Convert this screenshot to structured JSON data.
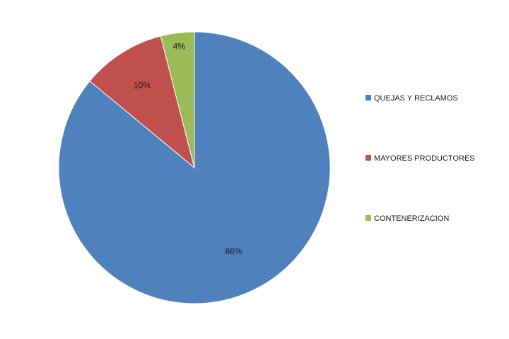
{
  "chart_data": {
    "type": "pie",
    "categories": [
      "QUEJAS Y RECLAMOS",
      "MAYORES PRODUCTORES",
      "CONTENERIZACION"
    ],
    "values": [
      86,
      10,
      4
    ],
    "data_labels": [
      "86%",
      "10%",
      "4%"
    ],
    "colors": [
      "#4f81bd",
      "#c0504d",
      "#9bbb59"
    ],
    "title": "",
    "legend_position": "right",
    "start_angle": "12 o'clock",
    "direction": "clockwise"
  }
}
